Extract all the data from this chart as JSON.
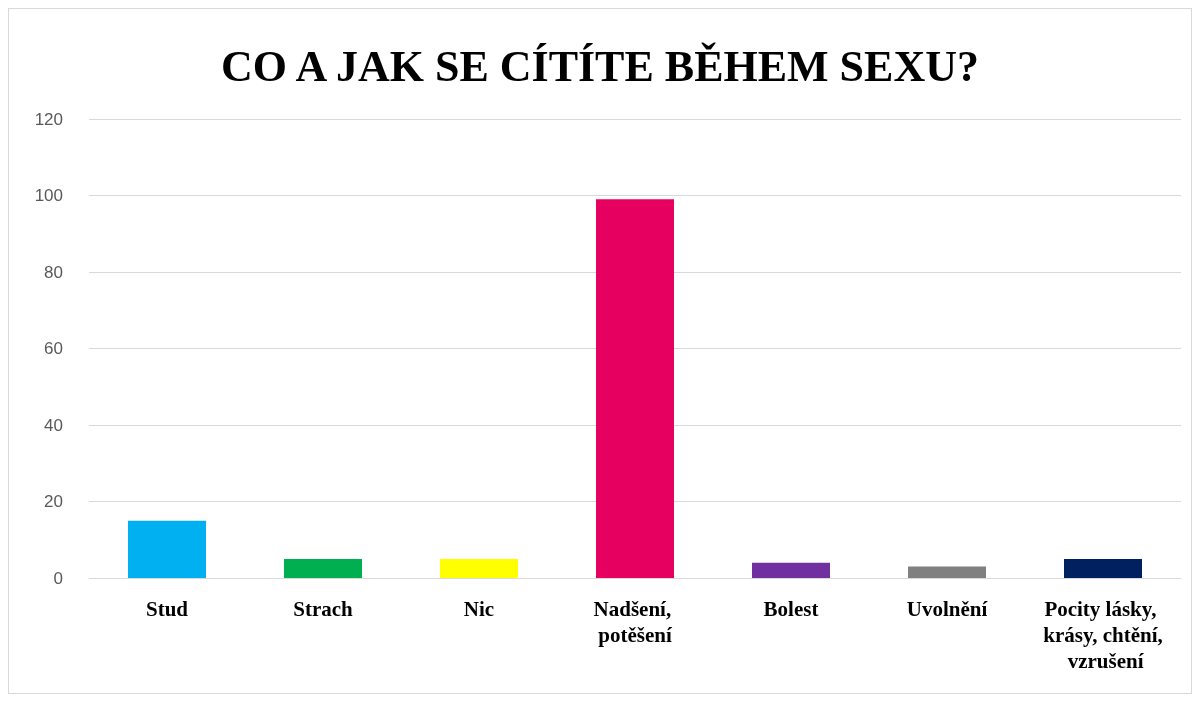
{
  "chart_data": {
    "type": "bar",
    "title": "CO A JAK SE CÍTÍTE BĚHEM SEXU?",
    "categories": [
      "Stud",
      "Strach",
      "Nic",
      "Nadšení, potěšení",
      "Bolest",
      "Uvolnění",
      "Pocity lásky, krásy, chtění, vzrušení"
    ],
    "values": [
      15,
      5,
      5,
      99,
      4,
      3,
      5
    ],
    "colors": [
      "#00b0f0",
      "#00b050",
      "#ffff00",
      "#e6005f",
      "#7030a0",
      "#808080",
      "#002060"
    ],
    "ylim": [
      0,
      120
    ],
    "yticks": [
      0,
      20,
      40,
      60,
      80,
      100,
      120
    ],
    "grid": "y"
  }
}
